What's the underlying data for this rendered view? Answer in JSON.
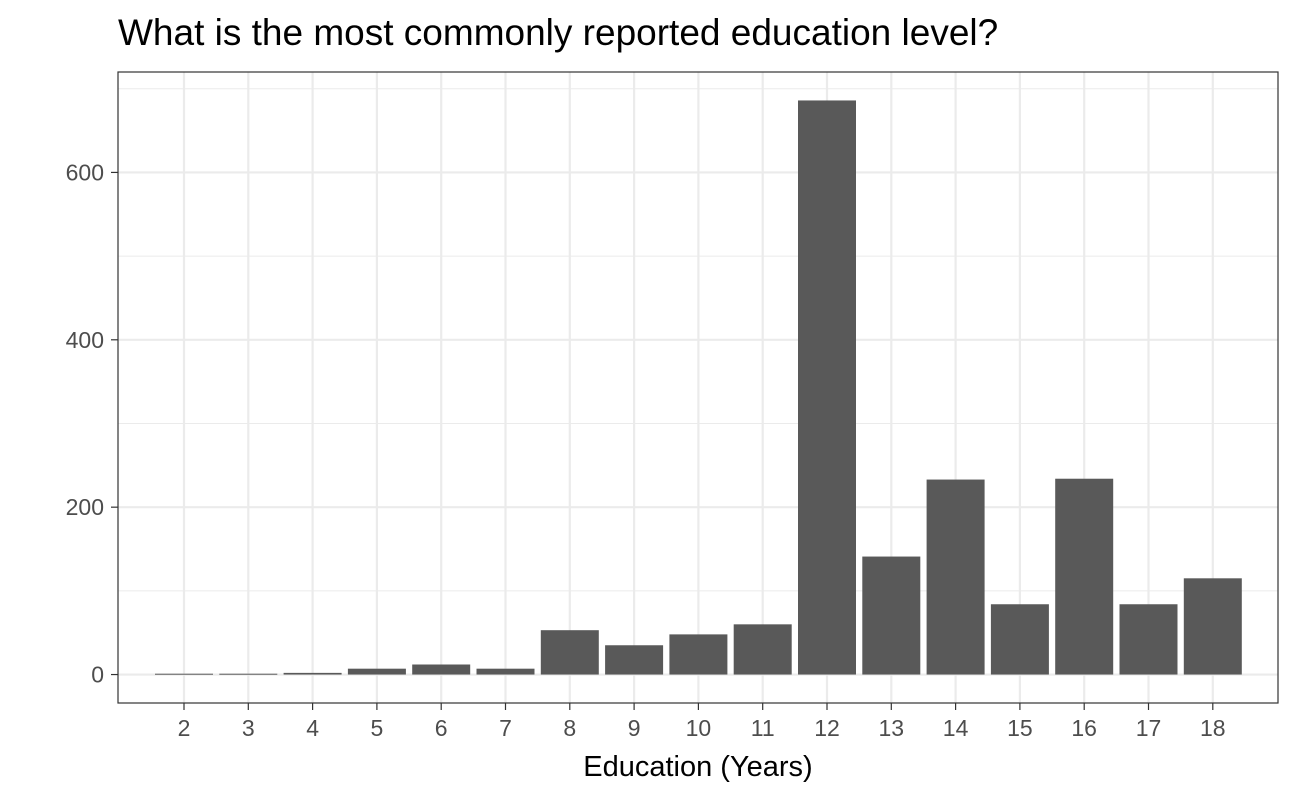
{
  "chart_data": {
    "type": "bar",
    "title": "What is the most commonly reported education level?",
    "xlabel": "Education (Years)",
    "ylabel": "",
    "categories": [
      "2",
      "3",
      "4",
      "5",
      "6",
      "7",
      "8",
      "9",
      "10",
      "11",
      "12",
      "13",
      "14",
      "15",
      "16",
      "17",
      "18"
    ],
    "values": [
      1,
      1,
      2,
      7,
      12,
      7,
      53,
      35,
      48,
      60,
      686,
      141,
      233,
      84,
      234,
      84,
      115
    ],
    "y_ticks": [
      0,
      200,
      400,
      600
    ],
    "ylim": [
      -34,
      720
    ],
    "grid": true,
    "bar_color": "#595959",
    "grid_color": "#ebebeb",
    "panel_border_color": "#333333",
    "tick_label_color": "#4d4d4d"
  }
}
